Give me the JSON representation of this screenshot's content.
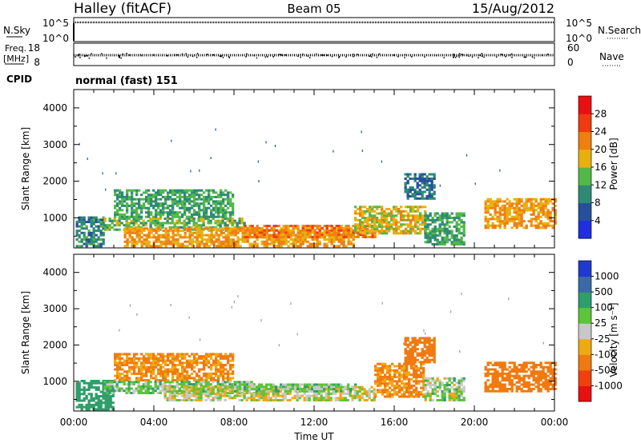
{
  "header": {
    "station": "Halley (fitACF)",
    "beam": "Beam 05",
    "date": "15/Aug/2012"
  },
  "strips": {
    "nsky_label": "N.Sky",
    "nsky_ticks": [
      "10^5",
      "10^0"
    ],
    "nsearch_label": "N.Search",
    "nsearch_ticks": [
      "10^5",
      "10^0"
    ],
    "freq_label_1": "Freq.",
    "freq_label_2": "[MHz]",
    "freq_ticks": [
      "18",
      "8"
    ],
    "nave_label": "Nave",
    "nave_ticks": [
      "60",
      "0"
    ],
    "cpid_label": "CPID",
    "cpid_value": "normal (fast) 151"
  },
  "axes": {
    "ylabel": "Slant Range [km]",
    "xlabel": "Time UT",
    "x_ticks": [
      "00:00",
      "04:00",
      "08:00",
      "12:00",
      "16:00",
      "20:00",
      "00:00"
    ],
    "y_ticks": [
      "1000",
      "2000",
      "3000",
      "4000"
    ],
    "ylim": [
      180,
      4500
    ],
    "xlim_hours": [
      0,
      24
    ]
  },
  "colorbars": {
    "power": {
      "label": "Power [dB]",
      "ticks": [
        "4",
        "8",
        "12",
        "16",
        "20",
        "24",
        "28"
      ],
      "colors": [
        "#1f2fe0",
        "#27509c",
        "#2e8a74",
        "#52b84a",
        "#e8b00e",
        "#f07f10",
        "#f03a10",
        "#e81010"
      ]
    },
    "velocity": {
      "label": "Velocity [m s⁻¹]",
      "ticks": [
        "1000",
        "500",
        "100",
        "25",
        "-25",
        "-100",
        "-500",
        "-1000"
      ],
      "colors": [
        "#1f3bcf",
        "#3b6aa8",
        "#2e9e6a",
        "#5cc43a",
        "#c8c8c8",
        "#f0a814",
        "#f07a10",
        "#f04010",
        "#e81010"
      ]
    }
  },
  "chart_data": [
    {
      "type": "heatmap",
      "title": "Power",
      "xlabel": "Time UT",
      "ylabel": "Slant Range [km]",
      "colorbar": "Power [dB]",
      "bands": [
        {
          "t": [
            0.1,
            1.5
          ],
          "r": [
            200,
            1000
          ],
          "v": 10
        },
        {
          "t": [
            1.5,
            8.5
          ],
          "r": [
            650,
            1000
          ],
          "v": 14
        },
        {
          "t": [
            2.0,
            8.0
          ],
          "r": [
            1000,
            1750
          ],
          "v": 12
        },
        {
          "t": [
            2.5,
            14.0
          ],
          "r": [
            200,
            700
          ],
          "v": 20
        },
        {
          "t": [
            8.5,
            15.0
          ],
          "r": [
            450,
            800
          ],
          "v": 22
        },
        {
          "t": [
            14.0,
            17.5
          ],
          "r": [
            550,
            1300
          ],
          "v": 18
        },
        {
          "t": [
            16.5,
            18.0
          ],
          "r": [
            1500,
            2200
          ],
          "v": 8
        },
        {
          "t": [
            17.5,
            19.5
          ],
          "r": [
            250,
            1100
          ],
          "v": 12
        },
        {
          "t": [
            20.5,
            24.0
          ],
          "r": [
            700,
            1500
          ],
          "v": 20
        }
      ]
    },
    {
      "type": "heatmap",
      "title": "Velocity",
      "xlabel": "Time UT",
      "ylabel": "Slant Range [km]",
      "colorbar": "Velocity [m s⁻¹]",
      "bands": [
        {
          "t": [
            0.1,
            2.0
          ],
          "r": [
            200,
            1000
          ],
          "v": 200
        },
        {
          "t": [
            2.0,
            8.0
          ],
          "r": [
            1000,
            1750
          ],
          "v": -120
        },
        {
          "t": [
            1.5,
            9.0
          ],
          "r": [
            650,
            1000
          ],
          "v": 60
        },
        {
          "t": [
            4.5,
            15.0
          ],
          "r": [
            450,
            850
          ],
          "v": 0
        },
        {
          "t": [
            8.0,
            14.0
          ],
          "r": [
            700,
            900
          ],
          "v": 60
        },
        {
          "t": [
            15.0,
            17.5
          ],
          "r": [
            550,
            1500
          ],
          "v": -120
        },
        {
          "t": [
            16.5,
            18.0
          ],
          "r": [
            1500,
            2200
          ],
          "v": -300
        },
        {
          "t": [
            17.5,
            19.5
          ],
          "r": [
            450,
            1100
          ],
          "v": 40
        },
        {
          "t": [
            20.5,
            24.0
          ],
          "r": [
            700,
            1500
          ],
          "v": -250
        }
      ]
    }
  ]
}
